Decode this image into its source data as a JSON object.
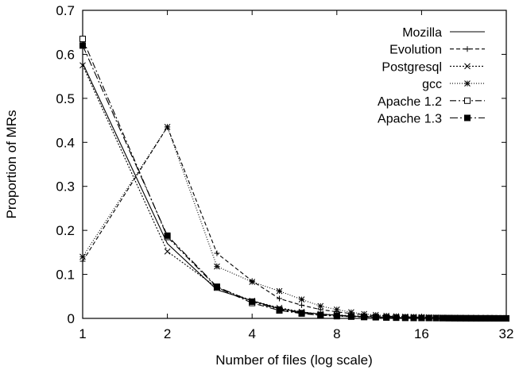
{
  "chart_data": {
    "type": "line",
    "title": "",
    "xlabel": "Number of files (log scale)",
    "ylabel": "Proportion of MRs",
    "x_scale": "log2",
    "xlim": [
      1,
      32
    ],
    "ylim": [
      0,
      0.7
    ],
    "x_ticks": [
      1,
      2,
      4,
      8,
      16,
      32
    ],
    "x_tick_labels": [
      "1",
      "2",
      "4",
      "8",
      "16",
      "32"
    ],
    "y_ticks": [
      0,
      0.1,
      0.2,
      0.3,
      0.4,
      0.5,
      0.6,
      0.7
    ],
    "y_tick_labels": [
      "0",
      "0.1",
      "0.2",
      "0.3",
      "0.4",
      "0.5",
      "0.6",
      "0.7"
    ],
    "grid": false,
    "legend_position": "top-right",
    "x": [
      1,
      2,
      3,
      4,
      5,
      6,
      7,
      8,
      9,
      10,
      11,
      12,
      13,
      14,
      15,
      16,
      17,
      18,
      19,
      20,
      21,
      22,
      23,
      24,
      25,
      26,
      27,
      28,
      29,
      30,
      31,
      32
    ],
    "series": [
      {
        "name": "Mozilla",
        "dash": "",
        "marker": "none",
        "values": [
          0.58,
          0.17,
          0.065,
          0.04,
          0.022,
          0.014,
          0.01,
          0.007,
          0.005,
          0.004,
          0.003,
          0.0025,
          0.002,
          0.0017,
          0.0015,
          0.0013,
          0.0011,
          0.001,
          0.0009,
          0.0008,
          0.0007,
          0.0006,
          0.0005,
          0.0005,
          0.0004,
          0.0004,
          0.0003,
          0.0003,
          0.0003,
          0.0002,
          0.0002,
          0.0002
        ]
      },
      {
        "name": "Evolution",
        "dash": "5,3",
        "marker": "plus",
        "values": [
          0.13,
          0.435,
          0.148,
          0.085,
          0.045,
          0.03,
          0.02,
          0.015,
          0.011,
          0.008,
          0.006,
          0.005,
          0.004,
          0.0035,
          0.003,
          0.0025,
          0.002,
          0.0018,
          0.0015,
          0.0013,
          0.0011,
          0.001,
          0.0009,
          0.0008,
          0.0007,
          0.0006,
          0.0005,
          0.0005,
          0.0004,
          0.0004,
          0.0003,
          0.0003
        ]
      },
      {
        "name": "Postgresql",
        "dash": "2,2",
        "marker": "cross",
        "values": [
          0.575,
          0.152,
          0.07,
          0.04,
          0.024,
          0.015,
          0.01,
          0.008,
          0.006,
          0.005,
          0.004,
          0.003,
          0.0025,
          0.002,
          0.0017,
          0.0015,
          0.0013,
          0.0011,
          0.001,
          0.0009,
          0.0008,
          0.0007,
          0.0006,
          0.0005,
          0.0005,
          0.0004,
          0.0004,
          0.0003,
          0.0003,
          0.0003,
          0.0002,
          0.0002
        ]
      },
      {
        "name": "gcc",
        "dash": "1,2",
        "marker": "star",
        "values": [
          0.14,
          0.435,
          0.118,
          0.083,
          0.062,
          0.043,
          0.028,
          0.02,
          0.014,
          0.01,
          0.008,
          0.006,
          0.005,
          0.004,
          0.0035,
          0.003,
          0.0025,
          0.002,
          0.0018,
          0.0015,
          0.0013,
          0.0011,
          0.001,
          0.0009,
          0.0008,
          0.0007,
          0.0006,
          0.0005,
          0.0005,
          0.0004,
          0.0004,
          0.0003
        ]
      },
      {
        "name": "Apache 1.2",
        "dash": "8,3,2,3",
        "marker": "square-open",
        "values": [
          0.635,
          0.185,
          0.07,
          0.035,
          0.018,
          0.011,
          0.007,
          0.005,
          0.004,
          0.003,
          0.0025,
          0.002,
          0.0015,
          0.0012,
          0.001,
          0.0009,
          0.0008,
          0.0007,
          0.0006,
          0.0005,
          0.0004,
          0.0004,
          0.0003,
          0.0003,
          0.0002,
          0.0002,
          0.0002,
          0.0002,
          0.0001,
          0.0001,
          0.0001,
          0.0001
        ]
      },
      {
        "name": "Apache 1.3",
        "dash": "10,3,2,3",
        "marker": "square-filled",
        "values": [
          0.62,
          0.188,
          0.072,
          0.038,
          0.02,
          0.012,
          0.008,
          0.006,
          0.0045,
          0.0035,
          0.0028,
          0.0022,
          0.0018,
          0.0015,
          0.0012,
          0.001,
          0.0009,
          0.0008,
          0.0007,
          0.0006,
          0.0005,
          0.0004,
          0.0004,
          0.0003,
          0.0003,
          0.0002,
          0.0002,
          0.0002,
          0.0002,
          0.0001,
          0.0001,
          0.0001
        ]
      }
    ]
  }
}
